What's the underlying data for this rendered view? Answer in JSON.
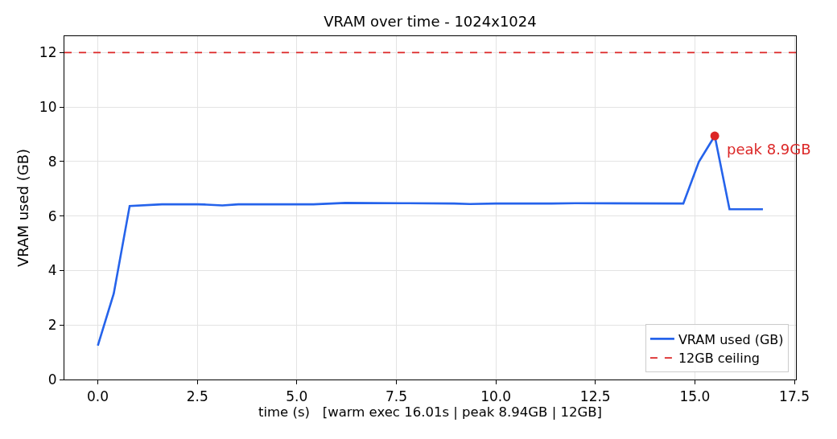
{
  "chart_data": {
    "type": "line",
    "title": "VRAM over time - 1024x1024",
    "xlabel": "time (s)   [warm exec 16.01s | peak 8.94GB | 12GB]",
    "ylabel": "VRAM used (GB)",
    "series": [
      {
        "name": "VRAM used (GB)",
        "color": "#2563eb",
        "x": [
          0,
          0.4,
          0.8,
          1.61,
          2.52,
          2.73,
          3.13,
          3.53,
          5.42,
          6.22,
          7.64,
          8.95,
          9.35,
          10.0,
          11.4,
          12.0,
          14.71,
          15.1,
          15.5,
          15.87,
          16.71
        ],
        "values": [
          1.24,
          3.15,
          6.37,
          6.43,
          6.43,
          6.42,
          6.39,
          6.43,
          6.43,
          6.48,
          6.47,
          6.46,
          6.44,
          6.46,
          6.46,
          6.47,
          6.46,
          7.99,
          8.94,
          6.25,
          6.25
        ]
      },
      {
        "type": "scatter",
        "color": "#dc2626",
        "x": [
          15.5
        ],
        "values": [
          8.94
        ]
      }
    ],
    "ref_lines": [
      {
        "axis": "y",
        "value": 12,
        "label": "12GB ceiling",
        "color": "#dc2626",
        "line_style": "dashed"
      }
    ],
    "annotations": [
      {
        "text": "peak 8.9GB",
        "x": 15.5,
        "y": 8.94
      }
    ],
    "xlim": [
      -0.84,
      17.54
    ],
    "ylim": [
      0,
      12.6
    ],
    "xticks": [
      {
        "value": 0,
        "label": "0.0"
      },
      {
        "value": 2.5,
        "label": "2.5"
      },
      {
        "value": 5,
        "label": "5.0"
      },
      {
        "value": 7.5,
        "label": "7.5"
      },
      {
        "value": 10,
        "label": "10.0"
      },
      {
        "value": 12.5,
        "label": "12.5"
      },
      {
        "value": 15,
        "label": "15.0"
      },
      {
        "value": 17.5,
        "label": "17.5"
      }
    ],
    "yticks": [
      0,
      2,
      4,
      6,
      8,
      10,
      12
    ],
    "grid": true,
    "legend": "bottom right"
  }
}
